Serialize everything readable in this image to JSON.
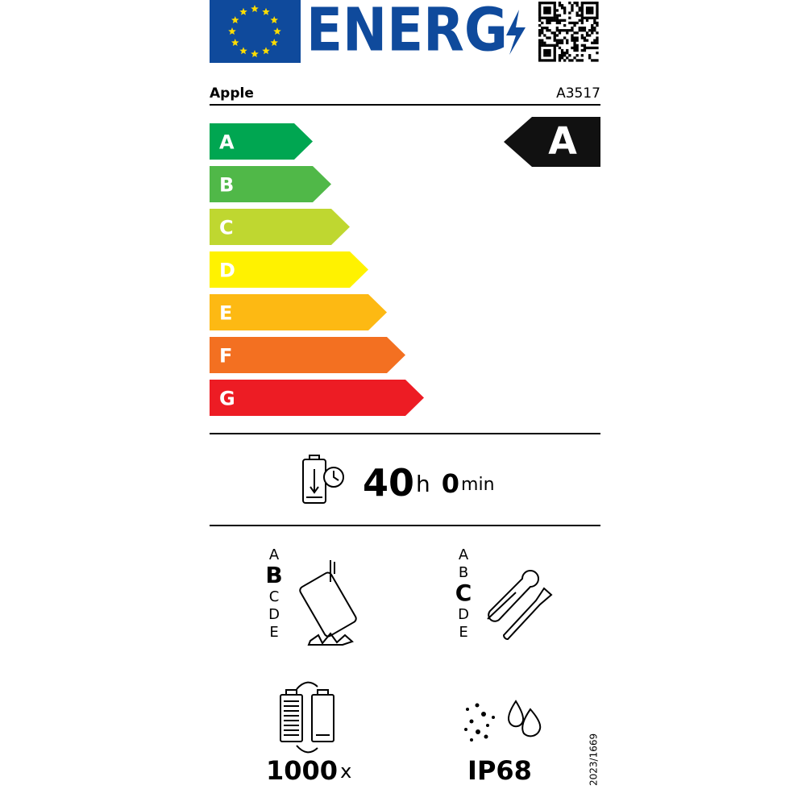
{
  "header": {
    "energy_word": "ENERG"
  },
  "supplier": "Apple",
  "model": "A3517",
  "classes": [
    "A",
    "B",
    "C",
    "D",
    "E",
    "F",
    "G"
  ],
  "class_colors": [
    "#00a651",
    "#50b848",
    "#bfd730",
    "#fff200",
    "#fdb913",
    "#f37021",
    "#ed1c24"
  ],
  "rating": "A",
  "battery_endurance": {
    "hours": "40",
    "hours_unit": "h",
    "minutes": "0",
    "minutes_unit": "min"
  },
  "drop_resistance": {
    "scale": [
      "A",
      "B",
      "C",
      "D",
      "E"
    ],
    "selected": "B"
  },
  "repairability": {
    "scale": [
      "A",
      "B",
      "C",
      "D",
      "E"
    ],
    "selected": "C"
  },
  "battery_cycles": {
    "value": "1000",
    "unit": "x"
  },
  "ingress_protection": "IP68",
  "regulation": "2023/1669"
}
